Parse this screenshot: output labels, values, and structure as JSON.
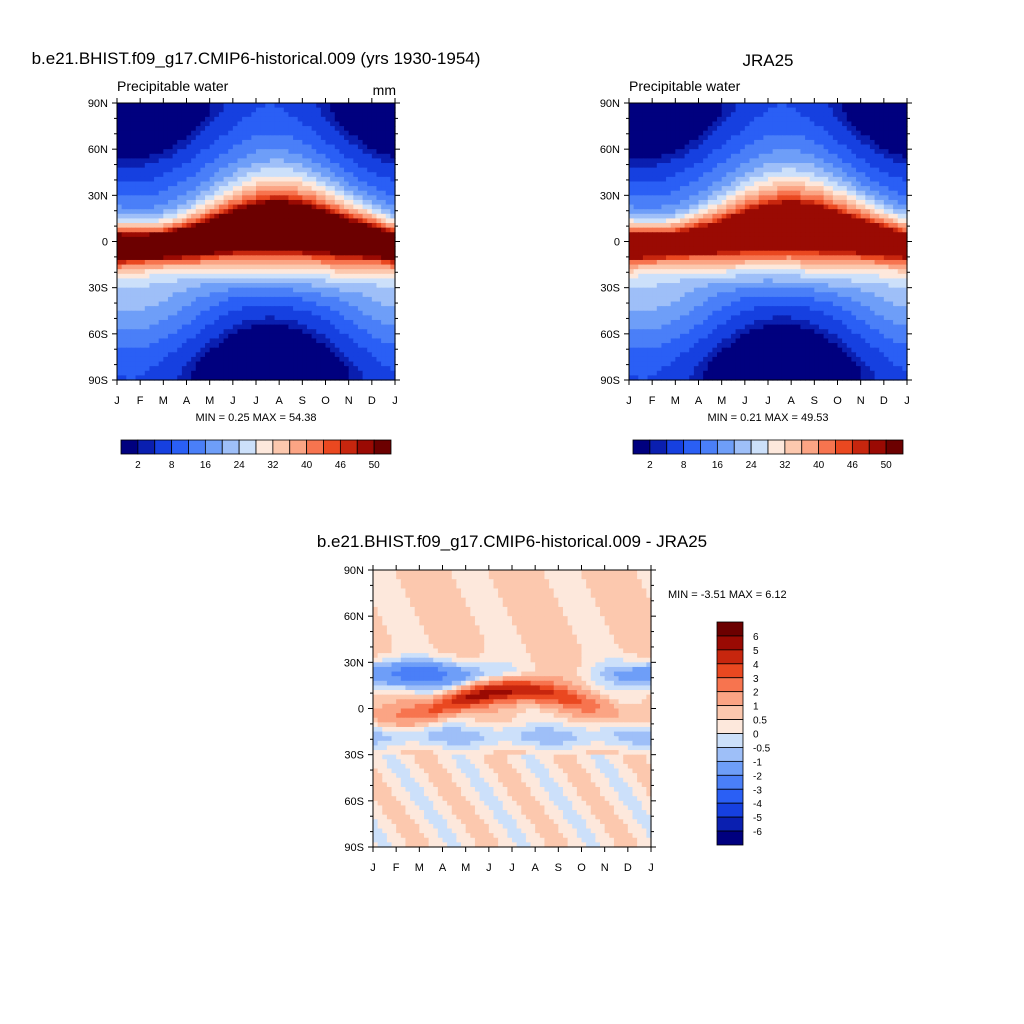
{
  "panels": [
    {
      "title": "b.e21.BHIST.f09_g17.CMIP6-historical.009 (yrs 1930-1954)",
      "subtitle_left": "Precipitable water",
      "subtitle_right": "mm",
      "stats": "MIN =   0.25 MAX =  54.38"
    },
    {
      "title": "JRA25",
      "subtitle_left": "Precipitable water",
      "subtitle_right": "",
      "stats": "MIN =   0.21 MAX =  49.53"
    },
    {
      "title": "b.e21.BHIST.f09_g17.CMIP6-historical.009 - JRA25",
      "subtitle_left": "",
      "subtitle_right": "",
      "stats": "MIN =  -3.51 MAX =   6.12"
    }
  ],
  "chart_data": [
    {
      "type": "heatmap",
      "title": "b.e21.BHIST.f09_g17.CMIP6-historical.009 (yrs 1930-1954)",
      "variable": "Precipitable water",
      "units": "mm",
      "x_ticks": [
        "J",
        "F",
        "M",
        "A",
        "M",
        "J",
        "J",
        "A",
        "S",
        "O",
        "N",
        "D",
        "J"
      ],
      "y_ticks": [
        "90N",
        "60N",
        "30N",
        "0",
        "30S",
        "60S",
        "90S"
      ],
      "ylim": [
        -90,
        90
      ],
      "min": 0.25,
      "max": 54.38,
      "itcz_peak_lat_by_month": [
        -3,
        -3,
        -2,
        0,
        3,
        6,
        8,
        9,
        8,
        6,
        3,
        1,
        -3
      ],
      "colorbar": {
        "labels": [
          "2",
          "8",
          "16",
          "24",
          "32",
          "40",
          "46",
          "50"
        ],
        "levels": [
          2,
          4,
          8,
          12,
          16,
          20,
          24,
          28,
          32,
          36,
          40,
          44,
          46,
          48,
          50
        ],
        "colors": [
          "#00007f",
          "#0a1fb0",
          "#1640e0",
          "#2a5ff5",
          "#4a7ff8",
          "#6e9ef8",
          "#9ebff8",
          "#cce0fa",
          "#fde8dc",
          "#fcc8ae",
          "#fba484",
          "#f7744f",
          "#ea4820",
          "#c7260e",
          "#9a0a03",
          "#6c0000"
        ]
      }
    },
    {
      "type": "heatmap",
      "title": "JRA25",
      "variable": "Precipitable water",
      "x_ticks": [
        "J",
        "F",
        "M",
        "A",
        "M",
        "J",
        "J",
        "A",
        "S",
        "O",
        "N",
        "D",
        "J"
      ],
      "y_ticks": [
        "90N",
        "60N",
        "30N",
        "0",
        "30S",
        "60S",
        "90S"
      ],
      "ylim": [
        -90,
        90
      ],
      "min": 0.21,
      "max": 49.53,
      "itcz_peak_lat_by_month": [
        -2,
        -2,
        -1,
        1,
        3,
        6,
        8,
        9,
        8,
        6,
        4,
        1,
        -2
      ],
      "colorbar": {
        "labels": [
          "2",
          "8",
          "16",
          "24",
          "32",
          "40",
          "46",
          "50"
        ],
        "levels": [
          2,
          4,
          8,
          12,
          16,
          20,
          24,
          28,
          32,
          36,
          40,
          44,
          46,
          48,
          50
        ],
        "colors": [
          "#00007f",
          "#0a1fb0",
          "#1640e0",
          "#2a5ff5",
          "#4a7ff8",
          "#6e9ef8",
          "#9ebff8",
          "#cce0fa",
          "#fde8dc",
          "#fcc8ae",
          "#fba484",
          "#f7744f",
          "#ea4820",
          "#c7260e",
          "#9a0a03",
          "#6c0000"
        ]
      }
    },
    {
      "type": "heatmap",
      "title": "b.e21.BHIST.f09_g17.CMIP6-historical.009 - JRA25",
      "x_ticks": [
        "J",
        "F",
        "M",
        "A",
        "M",
        "J",
        "J",
        "A",
        "S",
        "O",
        "N",
        "D",
        "J"
      ],
      "y_ticks": [
        "90N",
        "60N",
        "30N",
        "0",
        "30S",
        "60S",
        "90S"
      ],
      "ylim": [
        -90,
        90
      ],
      "min": -3.51,
      "max": 6.12,
      "colorbar": {
        "labels": [
          "6",
          "5",
          "4",
          "3",
          "2",
          "1",
          "0.5",
          "0",
          "-0.5",
          "-1",
          "-2",
          "-3",
          "-4",
          "-5",
          "-6"
        ],
        "levels": [
          -6,
          -5,
          -4,
          -3,
          -2,
          -1,
          -0.5,
          0,
          0.5,
          1,
          2,
          3,
          4,
          5,
          6
        ],
        "colors": [
          "#00007f",
          "#0a1fb0",
          "#1640e0",
          "#2a5ff5",
          "#4a7ff8",
          "#6e9ef8",
          "#9ebff8",
          "#cce0fa",
          "#fde8dc",
          "#fcc8ae",
          "#fba484",
          "#f7744f",
          "#ea4820",
          "#c7260e",
          "#9a0a03",
          "#6c0000"
        ]
      }
    }
  ]
}
